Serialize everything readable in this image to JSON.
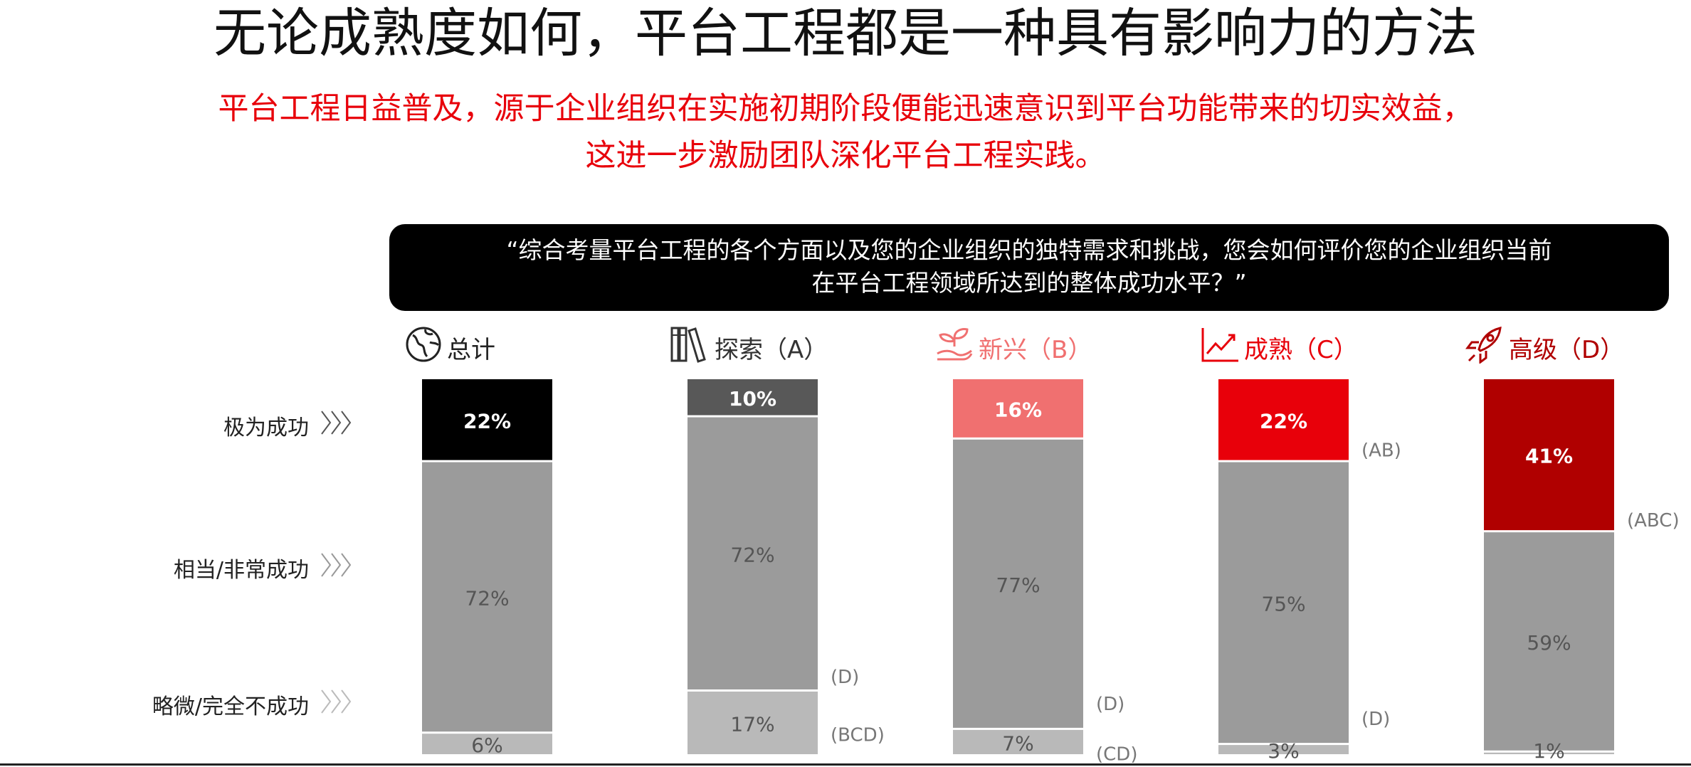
{
  "title": "无论成熟度如何，平台工程都是一种具有影响力的方法",
  "subtitle": {
    "line1": "平台工程日益普及，源于企业组织在实施初期阶段便能迅速意识到平台功能带来的切实效益，",
    "line2": "这进一步激励团队深化平台工程实践。"
  },
  "question": {
    "line1": "“综合考量平台工程的各个方面以及您的企业组织的独特需求和挑战，您会如何评价您的企业组织当前",
    "line2": "在平台工程领域所达到的整体成功水平？”"
  },
  "row_labels": [
    "极为成功",
    "相当/非常成功",
    "略微/完全不成功"
  ],
  "colors": {
    "mid_gray": "#9b9b9b",
    "light_gray": "#b9b9b9",
    "total": "#000000",
    "explore": "#585858",
    "emerging": "#f07070",
    "mature": "#e8000a",
    "advanced": "#b00000",
    "accent_red": "#e8000a"
  },
  "headers": [
    {
      "label": "总计",
      "icon": "globe-icon",
      "color": "#222222"
    },
    {
      "label": "探索（A）",
      "icon": "books-icon",
      "color": "#333333"
    },
    {
      "label": "新兴（B）",
      "icon": "sprout-icon",
      "color": "#f07070"
    },
    {
      "label": "成熟（C）",
      "icon": "growth-chart-icon",
      "color": "#e8000a"
    },
    {
      "label": "高级（D）",
      "icon": "rocket-icon",
      "color": "#b00000"
    }
  ],
  "chart_data": {
    "type": "bar",
    "stacked": true,
    "ylim": [
      0,
      100
    ],
    "categories": [
      "总计",
      "探索（A）",
      "新兴（B）",
      "成熟（C）",
      "高级（D）"
    ],
    "series": [
      {
        "name": "极为成功",
        "values": [
          22,
          10,
          16,
          22,
          41
        ],
        "labels": [
          "22%",
          "10%",
          "16%",
          "22%",
          "41%"
        ]
      },
      {
        "name": "相当/非常成功",
        "values": [
          72,
          72,
          77,
          75,
          59
        ],
        "labels": [
          "72%",
          "72%",
          "77%",
          "75%",
          "59%"
        ]
      },
      {
        "name": "略微/完全不成功",
        "values": [
          6,
          17,
          7,
          3,
          1
        ],
        "labels": [
          "6%",
          "17%",
          "7%",
          "3%",
          "1%"
        ]
      }
    ],
    "annotations": [
      {
        "category": "成熟（C）",
        "series": "极为成功",
        "text": "(AB)"
      },
      {
        "category": "高级（D）",
        "series": "极为成功",
        "text": "(ABC)"
      },
      {
        "category": "探索（A）",
        "series": "相当/非常成功",
        "text": "(D)"
      },
      {
        "category": "新兴（B）",
        "series": "相当/非常成功",
        "text": "(D)"
      },
      {
        "category": "成熟（C）",
        "series": "相当/非常成功",
        "text": "(D)"
      },
      {
        "category": "探索（A）",
        "series": "略微/完全不成功",
        "text": "(BCD)"
      },
      {
        "category": "新兴（B）",
        "series": "略微/完全不成功",
        "text": "(CD)"
      }
    ]
  }
}
